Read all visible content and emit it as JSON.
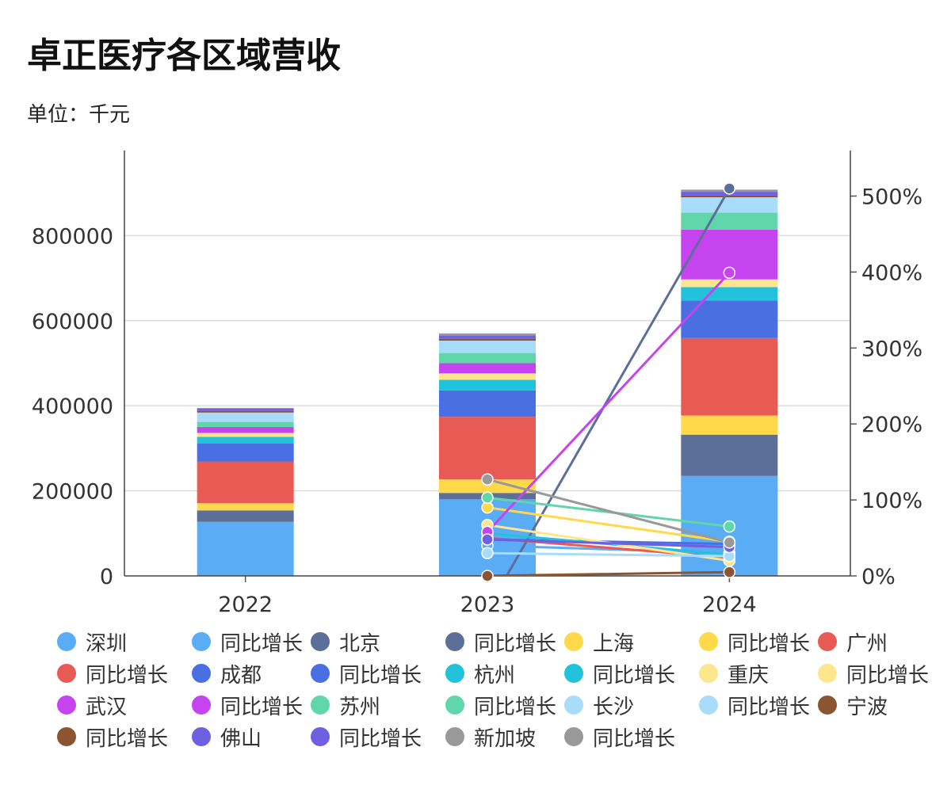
{
  "title": "卓正医疗各区域营收",
  "subtitle": "单位：千元",
  "chart_data": {
    "type": "bar",
    "stacked": true,
    "categories": [
      "2022",
      "2023",
      "2024"
    ],
    "left_axis": {
      "ylim": [
        0,
        1000000
      ],
      "ticks": [
        0,
        200000,
        400000,
        600000,
        800000
      ],
      "tick_labels": [
        "0",
        "200000",
        "400000",
        "600000",
        "800000"
      ]
    },
    "right_axis": {
      "ylim": [
        0,
        5.6
      ],
      "ticks": [
        0,
        1,
        2,
        3,
        4,
        5
      ],
      "tick_labels": [
        "0%",
        "100%",
        "200%",
        "300%",
        "400%",
        "500%"
      ]
    },
    "grid": true,
    "legend_position": "bottom",
    "series": [
      {
        "name": "深圳",
        "type": "bar",
        "color": "#5AACF5",
        "values": [
          127000,
          180000,
          235000
        ]
      },
      {
        "name": "同比增长",
        "type": "line",
        "color": "#5AACF5",
        "values": [
          null,
          0.4,
          0.3
        ]
      },
      {
        "name": "北京",
        "type": "bar",
        "color": "#5B6F99",
        "values": [
          27000,
          15000,
          97000
        ]
      },
      {
        "name": "同比增长",
        "type": "line",
        "color": "#5B6F99",
        "values": [
          null,
          -0.44,
          5.1
        ]
      },
      {
        "name": "上海",
        "type": "bar",
        "color": "#FFD94A",
        "values": [
          17000,
          32000,
          45000
        ]
      },
      {
        "name": "同比增长",
        "type": "line",
        "color": "#FFD94A",
        "values": [
          null,
          0.9,
          0.45
        ]
      },
      {
        "name": "广州",
        "type": "bar",
        "color": "#E85A54",
        "values": [
          98000,
          147000,
          182000
        ]
      },
      {
        "name": "同比增长",
        "type": "line",
        "color": "#E85A54",
        "values": [
          null,
          0.5,
          0.24
        ]
      },
      {
        "name": "成都",
        "type": "bar",
        "color": "#4A6FE3",
        "values": [
          42000,
          62000,
          88000
        ]
      },
      {
        "name": "同比增长",
        "type": "line",
        "color": "#4A6FE3",
        "values": [
          null,
          0.48,
          0.42
        ]
      },
      {
        "name": "杭州",
        "type": "bar",
        "color": "#23C2DB",
        "values": [
          16000,
          25000,
          32000
        ]
      },
      {
        "name": "同比增长",
        "type": "line",
        "color": "#23C2DB",
        "values": [
          null,
          0.56,
          0.28
        ]
      },
      {
        "name": "重庆",
        "type": "bar",
        "color": "#FDE68C",
        "values": [
          9000,
          15000,
          18000
        ]
      },
      {
        "name": "同比增长",
        "type": "line",
        "color": "#FDE68C",
        "values": [
          null,
          0.67,
          0.2
        ]
      },
      {
        "name": "武汉",
        "type": "bar",
        "color": "#C644F0",
        "values": [
          14000,
          24000,
          117000
        ]
      },
      {
        "name": "同比增长",
        "type": "line",
        "color": "#C644F0",
        "values": [
          null,
          0.58,
          3.99
        ]
      },
      {
        "name": "苏州",
        "type": "bar",
        "color": "#60D6AA",
        "values": [
          12000,
          24000,
          40000
        ]
      },
      {
        "name": "同比增长",
        "type": "line",
        "color": "#60D6AA",
        "values": [
          null,
          1.03,
          0.65
        ]
      },
      {
        "name": "长沙",
        "type": "bar",
        "color": "#A7DDF9",
        "values": [
          22000,
          29000,
          36000
        ]
      },
      {
        "name": "同比增长",
        "type": "line",
        "color": "#A7DDF9",
        "values": [
          null,
          0.3,
          0.26
        ]
      },
      {
        "name": "宁波",
        "type": "bar",
        "color": "#8A5530",
        "values": [
          4000,
          4000,
          4000
        ]
      },
      {
        "name": "同比增长",
        "type": "line",
        "color": "#8A5530",
        "values": [
          null,
          0.0,
          0.05
        ]
      },
      {
        "name": "佛山",
        "type": "bar",
        "color": "#6E60E0",
        "values": [
          5000,
          8000,
          9000
        ]
      },
      {
        "name": "同比增长",
        "type": "line",
        "color": "#6E60E0",
        "values": [
          null,
          0.48,
          0.38
        ]
      },
      {
        "name": "新加坡",
        "type": "bar",
        "color": "#999999",
        "values": [
          2000,
          5000,
          5000
        ]
      },
      {
        "name": "同比增长",
        "type": "line",
        "color": "#999999",
        "values": [
          null,
          1.27,
          0.44
        ]
      }
    ]
  }
}
